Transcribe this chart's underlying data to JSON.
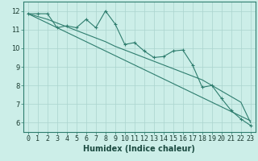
{
  "xlabel": "Humidex (Indice chaleur)",
  "ylabel": "",
  "bg_color": "#cceee8",
  "grid_color": "#aad4ce",
  "line_color": "#2e7d6e",
  "x_data": [
    0,
    1,
    2,
    3,
    4,
    5,
    6,
    7,
    8,
    9,
    10,
    11,
    12,
    13,
    14,
    15,
    16,
    17,
    18,
    19,
    20,
    21,
    22,
    23
  ],
  "y_curve1": [
    11.85,
    11.85,
    11.85,
    11.1,
    11.2,
    11.1,
    11.55,
    11.1,
    12.0,
    11.3,
    10.2,
    10.3,
    9.85,
    9.5,
    9.55,
    9.85,
    9.9,
    9.1,
    7.9,
    8.0,
    7.3,
    6.65,
    6.2,
    5.85
  ],
  "y_line1": [
    11.85,
    11.6,
    11.35,
    11.1,
    10.85,
    10.6,
    10.35,
    10.1,
    9.85,
    9.6,
    9.35,
    9.1,
    8.85,
    8.6,
    8.35,
    8.1,
    7.85,
    7.6,
    7.35,
    7.1,
    6.85,
    6.6,
    6.35,
    6.1
  ],
  "y_line2": [
    11.85,
    11.7,
    11.55,
    11.35,
    11.15,
    10.95,
    10.75,
    10.55,
    10.35,
    10.1,
    9.9,
    9.7,
    9.5,
    9.3,
    9.1,
    8.9,
    8.7,
    8.5,
    8.3,
    8.0,
    7.7,
    7.4,
    7.1,
    6.0
  ],
  "ylim": [
    5.5,
    12.5
  ],
  "xlim": [
    -0.5,
    23.5
  ],
  "yticks": [
    6,
    7,
    8,
    9,
    10,
    11,
    12
  ],
  "xtick_labels": [
    "0",
    "1",
    "2",
    "3",
    "4",
    "5",
    "6",
    "7",
    "8",
    "9",
    "10",
    "11",
    "12",
    "13",
    "14",
    "15",
    "16",
    "17",
    "18",
    "19",
    "20",
    "21",
    "22",
    "23"
  ],
  "xlabel_fontsize": 7,
  "tick_fontsize": 6
}
